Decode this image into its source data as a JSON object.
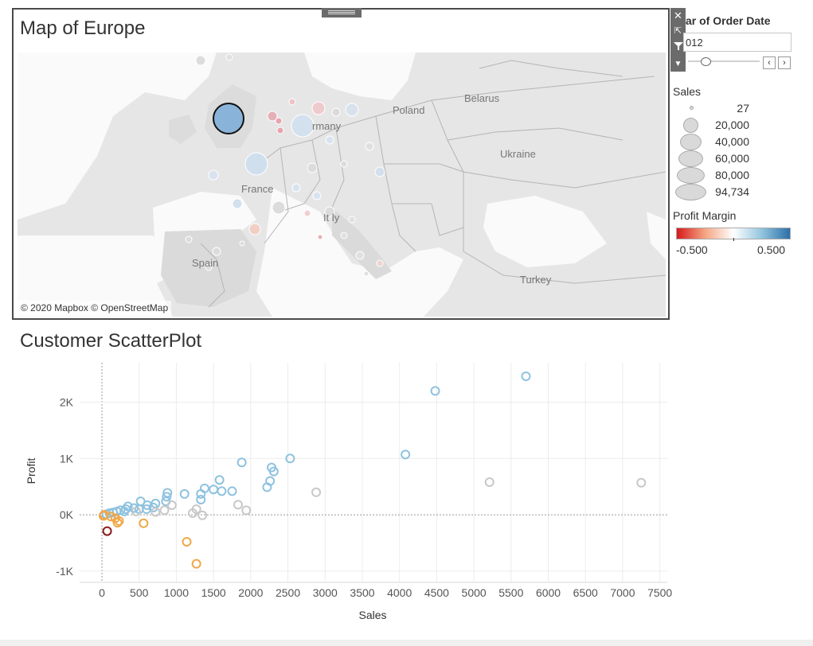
{
  "map": {
    "title": "Map of Europe",
    "attribution": "© 2020 Mapbox © OpenStreetMap",
    "labels": [
      "Poland",
      "Belarus",
      "rmany",
      "Ukraine",
      "France",
      "It ly",
      "Spain",
      "Turkey"
    ],
    "colors": {
      "land": "#e6e6e6",
      "sea": "#fafafa",
      "border": "#b5b5b5",
      "uk_circle": "#8ab3d9"
    }
  },
  "zone_toolbar": {
    "icons": [
      "close-icon",
      "popout-icon",
      "filter-icon",
      "menu-dropdown-icon"
    ]
  },
  "year_filter": {
    "title": "ar of Order Date",
    "value": "012",
    "prev_icon": "chevron-left-icon",
    "next_icon": "chevron-right-icon"
  },
  "sales_legend": {
    "title": "Sales",
    "items": [
      "27",
      "20,000",
      "40,000",
      "60,000",
      "80,000",
      "94,734"
    ]
  },
  "profit_legend": {
    "title": "Profit Margin",
    "min_label": "-0.500",
    "max_label": "0.500",
    "colors": [
      "#d7191c",
      "#f4a582",
      "#ffffff",
      "#92c5de",
      "#2c6fa8"
    ]
  },
  "scatter": {
    "title": "Customer ScatterPlot"
  },
  "chart_data": {
    "type": "scatter",
    "title": "Customer ScatterPlot",
    "xlabel": "Sales",
    "ylabel": "Profit",
    "xlim": [
      -300,
      7600
    ],
    "ylim": [
      -1200,
      2700
    ],
    "x_ticks": [
      0,
      500,
      1000,
      1500,
      2000,
      2500,
      3000,
      3500,
      4000,
      4500,
      5000,
      5500,
      6000,
      6500,
      7000,
      7500
    ],
    "x_tick_labels": [
      "0",
      "500",
      "1000",
      "1500",
      "2000",
      "2500",
      "3000",
      "3500",
      "4000",
      "4500",
      "5000",
      "5500",
      "6000",
      "6500",
      "7000",
      "7500"
    ],
    "y_ticks": [
      -1000,
      0,
      1000,
      2000
    ],
    "y_tick_labels": [
      "-1K",
      "0K",
      "1K",
      "2K"
    ],
    "grid": true,
    "colors": {
      "strong_pos": "#8ec2df",
      "neutral": "#c8c8c8",
      "neg": "#f0a84a",
      "strong_neg": "#8b1a1a"
    },
    "points": [
      {
        "x": 5700,
        "y": 2460,
        "c": "strong_pos"
      },
      {
        "x": 4480,
        "y": 2200,
        "c": "strong_pos"
      },
      {
        "x": 7250,
        "y": 570,
        "c": "neutral"
      },
      {
        "x": 5210,
        "y": 580,
        "c": "neutral"
      },
      {
        "x": 4080,
        "y": 1070,
        "c": "strong_pos"
      },
      {
        "x": 2880,
        "y": 400,
        "c": "neutral"
      },
      {
        "x": 2530,
        "y": 1000,
        "c": "strong_pos"
      },
      {
        "x": 2280,
        "y": 840,
        "c": "strong_pos"
      },
      {
        "x": 2310,
        "y": 770,
        "c": "strong_pos"
      },
      {
        "x": 2260,
        "y": 600,
        "c": "strong_pos"
      },
      {
        "x": 2220,
        "y": 490,
        "c": "strong_pos"
      },
      {
        "x": 1880,
        "y": 930,
        "c": "strong_pos"
      },
      {
        "x": 1940,
        "y": 80,
        "c": "neutral"
      },
      {
        "x": 1830,
        "y": 180,
        "c": "neutral"
      },
      {
        "x": 1750,
        "y": 420,
        "c": "strong_pos"
      },
      {
        "x": 1580,
        "y": 620,
        "c": "strong_pos"
      },
      {
        "x": 1610,
        "y": 420,
        "c": "strong_pos"
      },
      {
        "x": 1500,
        "y": 450,
        "c": "strong_pos"
      },
      {
        "x": 1380,
        "y": 470,
        "c": "strong_pos"
      },
      {
        "x": 1330,
        "y": 370,
        "c": "strong_pos"
      },
      {
        "x": 1330,
        "y": 270,
        "c": "strong_pos"
      },
      {
        "x": 1350,
        "y": -10,
        "c": "neutral"
      },
      {
        "x": 1270,
        "y": 100,
        "c": "neutral"
      },
      {
        "x": 1220,
        "y": 30,
        "c": "neutral"
      },
      {
        "x": 1110,
        "y": 370,
        "c": "strong_pos"
      },
      {
        "x": 1140,
        "y": -480,
        "c": "neg"
      },
      {
        "x": 1270,
        "y": -870,
        "c": "neg"
      },
      {
        "x": 560,
        "y": -150,
        "c": "neg"
      },
      {
        "x": 880,
        "y": 390,
        "c": "strong_pos"
      },
      {
        "x": 870,
        "y": 320,
        "c": "strong_pos"
      },
      {
        "x": 860,
        "y": 240,
        "c": "strong_pos"
      },
      {
        "x": 840,
        "y": 80,
        "c": "neutral"
      },
      {
        "x": 940,
        "y": 170,
        "c": "neutral"
      },
      {
        "x": 720,
        "y": 200,
        "c": "strong_pos"
      },
      {
        "x": 690,
        "y": 130,
        "c": "strong_pos"
      },
      {
        "x": 720,
        "y": 50,
        "c": "neutral"
      },
      {
        "x": 610,
        "y": 170,
        "c": "strong_pos"
      },
      {
        "x": 600,
        "y": 100,
        "c": "strong_pos"
      },
      {
        "x": 520,
        "y": 240,
        "c": "strong_pos"
      },
      {
        "x": 500,
        "y": 100,
        "c": "strong_pos"
      },
      {
        "x": 460,
        "y": 60,
        "c": "neutral"
      },
      {
        "x": 430,
        "y": 120,
        "c": "strong_pos"
      },
      {
        "x": 350,
        "y": 150,
        "c": "strong_pos"
      },
      {
        "x": 320,
        "y": 100,
        "c": "strong_pos"
      },
      {
        "x": 300,
        "y": 60,
        "c": "strong_pos"
      },
      {
        "x": 250,
        "y": 80,
        "c": "strong_pos"
      },
      {
        "x": 200,
        "y": 60,
        "c": "strong_pos"
      },
      {
        "x": 150,
        "y": 40,
        "c": "strong_pos"
      },
      {
        "x": 100,
        "y": 30,
        "c": "strong_pos"
      },
      {
        "x": 60,
        "y": 10,
        "c": "strong_pos"
      },
      {
        "x": 30,
        "y": 0,
        "c": "neg"
      },
      {
        "x": 20,
        "y": -20,
        "c": "neg"
      },
      {
        "x": 210,
        "y": -140,
        "c": "neg"
      },
      {
        "x": 230,
        "y": -110,
        "c": "neg"
      },
      {
        "x": 180,
        "y": -60,
        "c": "neg"
      },
      {
        "x": 120,
        "y": -30,
        "c": "neg"
      },
      {
        "x": 70,
        "y": -290,
        "c": "strong_neg"
      }
    ]
  }
}
